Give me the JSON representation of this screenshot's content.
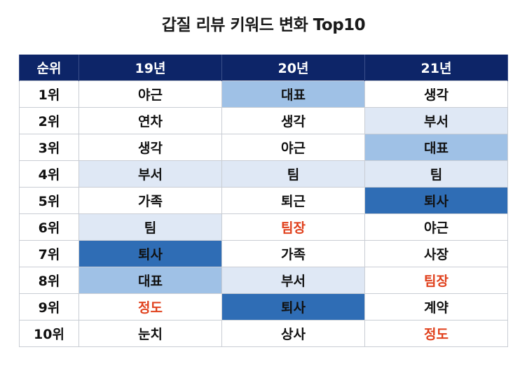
{
  "title": "갑질 리뷰 키워드 변화 Top10",
  "colors": {
    "header_bg": "#0d2568",
    "light": "#dfe8f5",
    "mid": "#9fc1e6",
    "dark": "#2f6db5",
    "red_text": "#e0401c"
  },
  "table": {
    "headers": [
      "순위",
      "19년",
      "20년",
      "21년"
    ],
    "rows": [
      {
        "rank": "1위",
        "y19": "야근",
        "y20": "대표",
        "y21": "생각"
      },
      {
        "rank": "2위",
        "y19": "연차",
        "y20": "생각",
        "y21": "부서"
      },
      {
        "rank": "3위",
        "y19": "생각",
        "y20": "야근",
        "y21": "대표"
      },
      {
        "rank": "4위",
        "y19": "부서",
        "y20": "팀",
        "y21": "팀"
      },
      {
        "rank": "5위",
        "y19": "가족",
        "y20": "퇴근",
        "y21": "퇴사"
      },
      {
        "rank": "6위",
        "y19": "팀",
        "y20": "팀장",
        "y21": "야근"
      },
      {
        "rank": "7위",
        "y19": "퇴사",
        "y20": "가족",
        "y21": "사장"
      },
      {
        "rank": "8위",
        "y19": "대표",
        "y20": "부서",
        "y21": "팀장"
      },
      {
        "rank": "9위",
        "y19": "정도",
        "y20": "퇴사",
        "y21": "계약"
      },
      {
        "rank": "10위",
        "y19": "눈치",
        "y20": "상사",
        "y21": "정도"
      }
    ]
  }
}
